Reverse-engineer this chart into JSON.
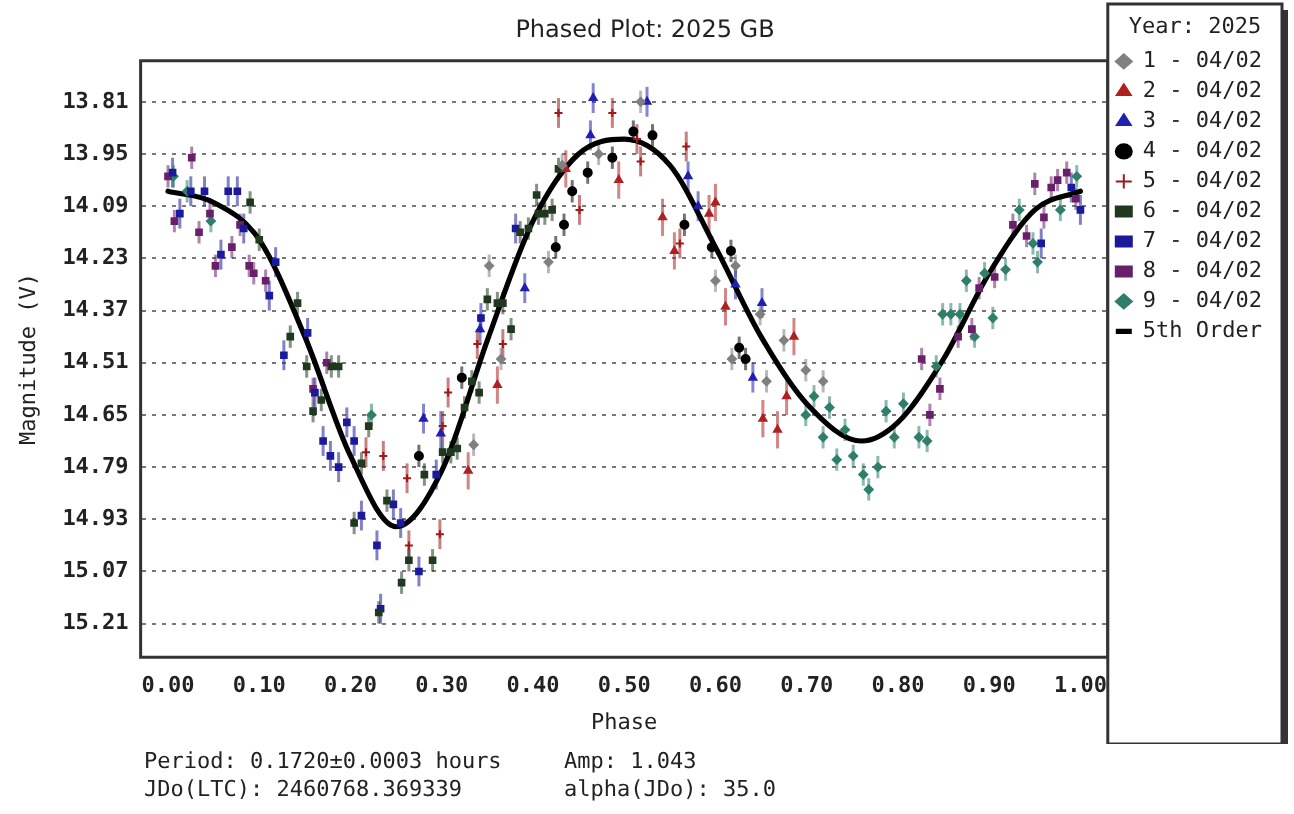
{
  "chart_data": {
    "type": "scatter",
    "title": "Phased Plot: 2025 GB",
    "xlabel": "Phase",
    "ylabel": "Magnitude (V)",
    "legend_title": "Year: 2025",
    "legend": "right",
    "grid": "y",
    "xlim": [
      -0.03,
      1.03
    ],
    "ylim": [
      15.3,
      13.7
    ],
    "xticks": [
      {
        "value": 0,
        "label": "0.00"
      },
      {
        "value": 0.1,
        "label": "0.10"
      },
      {
        "value": 0.2,
        "label": "0.20"
      },
      {
        "value": 0.3,
        "label": "0.30"
      },
      {
        "value": 0.4,
        "label": "0.40"
      },
      {
        "value": 0.5,
        "label": "0.50"
      },
      {
        "value": 0.6,
        "label": "0.60"
      },
      {
        "value": 0.7,
        "label": "0.70"
      },
      {
        "value": 0.8,
        "label": "0.80"
      },
      {
        "value": 0.9,
        "label": "0.90"
      },
      {
        "value": 1,
        "label": "1.00"
      }
    ],
    "yticks": [
      13.81,
      13.95,
      14.09,
      14.23,
      14.37,
      14.51,
      14.65,
      14.79,
      14.93,
      15.07,
      15.21
    ],
    "annotations": [
      "Period: 0.1720±0.0003 hours",
      "Amp: 1.043",
      "JDo(LTC): 2460768.369339",
      "alpha(JDo): 35.0"
    ],
    "series": [
      {
        "name": "1 - 04/02",
        "color": "#808080",
        "marker": "diamond",
        "x": [
          0.335,
          0.352,
          0.365,
          0.417,
          0.432,
          0.472,
          0.518,
          0.6,
          0.618,
          0.622,
          0.649,
          0.656,
          0.675,
          0.699,
          0.718
        ],
        "values": [
          14.73,
          14.25,
          14.5,
          14.24,
          13.98,
          13.95,
          13.81,
          14.29,
          14.5,
          14.25,
          14.38,
          14.56,
          14.45,
          14.53,
          14.56
        ],
        "errors": [
          0.03,
          0.03,
          0.03,
          0.03,
          0.03,
          0.03,
          0.03,
          0.03,
          0.03,
          0.03,
          0.03,
          0.03,
          0.03,
          0.03,
          0.03
        ]
      },
      {
        "name": "2 - 04/02",
        "color": "#b02020",
        "marker": "triangle",
        "x": [
          0.329,
          0.361,
          0.436,
          0.494,
          0.542,
          0.555,
          0.593,
          0.6,
          0.611,
          0.652,
          0.668,
          0.678,
          0.686
        ],
        "values": [
          14.8,
          14.57,
          13.99,
          14.02,
          14.12,
          14.21,
          14.11,
          14.08,
          14.36,
          14.66,
          14.69,
          14.6,
          14.44
        ],
        "errors": [
          0.05,
          0.05,
          0.05,
          0.05,
          0.05,
          0.05,
          0.05,
          0.05,
          0.05,
          0.05,
          0.05,
          0.05,
          0.05
        ]
      },
      {
        "name": "3 - 04/02",
        "color": "#2020b0",
        "marker": "triangle",
        "x": [
          0.28,
          0.299,
          0.342,
          0.391,
          0.463,
          0.466,
          0.525,
          0.57,
          0.581,
          0.622,
          0.641,
          0.651
        ],
        "values": [
          14.66,
          14.7,
          14.42,
          14.31,
          13.9,
          13.8,
          13.81,
          14.01,
          14.09,
          14.3,
          14.55,
          14.35
        ],
        "errors": [
          0.04,
          0.06,
          0.04,
          0.04,
          0.04,
          0.04,
          0.04,
          0.04,
          0.04,
          0.04,
          0.04,
          0.04
        ]
      },
      {
        "name": "4 - 04/02",
        "color": "#000000",
        "marker": "circle",
        "x": [
          0.275,
          0.322,
          0.425,
          0.434,
          0.443,
          0.46,
          0.487,
          0.51,
          0.531,
          0.566,
          0.596,
          0.617,
          0.626,
          0.633
        ],
        "values": [
          14.76,
          14.55,
          14.2,
          14.14,
          14.05,
          14.0,
          13.96,
          13.89,
          13.9,
          14.14,
          14.2,
          14.21,
          14.47,
          14.5
        ],
        "errors": [
          0.03,
          0.03,
          0.03,
          0.03,
          0.03,
          0.03,
          0.03,
          0.03,
          0.03,
          0.03,
          0.03,
          0.03,
          0.03,
          0.03
        ]
      },
      {
        "name": "5 - 04/02",
        "color": "#a01818",
        "marker": "cross",
        "x": [
          0.217,
          0.236,
          0.262,
          0.264,
          0.298,
          0.301,
          0.307,
          0.339,
          0.367,
          0.428,
          0.451,
          0.487,
          0.514,
          0.518,
          0.561,
          0.568
        ],
        "values": [
          14.75,
          14.76,
          14.82,
          15.0,
          14.97,
          14.68,
          14.59,
          14.46,
          14.46,
          13.84,
          14.1,
          13.84,
          13.91,
          13.97,
          14.19,
          13.93
        ],
        "errors": [
          0.04,
          0.04,
          0.04,
          0.04,
          0.04,
          0.04,
          0.04,
          0.04,
          0.04,
          0.04,
          0.04,
          0.04,
          0.04,
          0.04,
          0.04,
          0.04
        ]
      },
      {
        "name": "6 - 04/02",
        "color": "#203820",
        "marker": "square",
        "x": [
          0.09,
          0.1,
          0.134,
          0.142,
          0.152,
          0.159,
          0.168,
          0.179,
          0.187,
          0.204,
          0.212,
          0.22,
          0.231,
          0.24,
          0.256,
          0.264,
          0.281,
          0.29,
          0.301,
          0.31,
          0.317,
          0.325,
          0.333,
          0.341,
          0.35,
          0.361,
          0.367,
          0.376,
          0.386,
          0.395,
          0.404,
          0.406,
          0.413,
          0.421,
          0.428
        ],
        "values": [
          14.08,
          14.18,
          14.44,
          14.35,
          14.52,
          14.64,
          14.61,
          14.52,
          14.52,
          14.94,
          14.78,
          14.68,
          15.18,
          14.88,
          15.1,
          15.04,
          14.81,
          15.04,
          14.75,
          14.75,
          14.74,
          14.63,
          14.56,
          14.59,
          14.34,
          14.35,
          14.35,
          14.42,
          14.16,
          14.15,
          14.06,
          14.11,
          14.11,
          14.1,
          13.99
        ],
        "errors": [
          0.03,
          0.03,
          0.03,
          0.03,
          0.03,
          0.03,
          0.03,
          0.03,
          0.03,
          0.03,
          0.03,
          0.03,
          0.03,
          0.03,
          0.03,
          0.03,
          0.03,
          0.03,
          0.03,
          0.03,
          0.03,
          0.03,
          0.03,
          0.03,
          0.03,
          0.03,
          0.03,
          0.03,
          0.03,
          0.03,
          0.03,
          0.03,
          0.03,
          0.03,
          0.03
        ]
      },
      {
        "name": "7 - 04/02",
        "color": "#1a1a9a",
        "marker": "square",
        "x": [
          0.005,
          0.013,
          0.025,
          0.04,
          0.058,
          0.066,
          0.076,
          0.083,
          0.111,
          0.118,
          0.127,
          0.153,
          0.161,
          0.17,
          0.178,
          0.187,
          0.196,
          0.204,
          0.212,
          0.229,
          0.233,
          0.247,
          0.255,
          0.275,
          0.294,
          0.343,
          0.381,
          0.957,
          0.99,
          1.0
        ],
        "values": [
          14.0,
          14.11,
          14.05,
          14.05,
          14.22,
          14.05,
          14.05,
          14.15,
          14.33,
          14.24,
          14.49,
          14.43,
          14.59,
          14.72,
          14.76,
          14.79,
          14.67,
          14.72,
          14.92,
          15.0,
          15.17,
          14.89,
          14.94,
          15.07,
          14.81,
          14.39,
          14.15,
          14.19,
          14.04,
          14.1
        ],
        "errors": [
          0.04,
          0.04,
          0.04,
          0.04,
          0.04,
          0.04,
          0.04,
          0.04,
          0.04,
          0.04,
          0.04,
          0.04,
          0.04,
          0.04,
          0.04,
          0.04,
          0.04,
          0.04,
          0.04,
          0.04,
          0.04,
          0.04,
          0.04,
          0.04,
          0.04,
          0.04,
          0.04,
          0.04,
          0.04,
          0.04
        ]
      },
      {
        "name": "8 - 04/02",
        "color": "#6a1f6a",
        "marker": "square",
        "x": [
          0.0,
          0.007,
          0.026,
          0.034,
          0.046,
          0.052,
          0.07,
          0.079,
          0.089,
          0.094,
          0.107,
          0.159,
          0.174,
          0.826,
          0.835,
          0.846,
          0.866,
          0.881,
          0.889,
          0.906,
          0.926,
          0.941,
          0.95,
          0.96,
          0.968,
          0.975,
          0.985,
          0.995
        ],
        "values": [
          14.01,
          14.13,
          13.96,
          14.16,
          14.11,
          14.25,
          14.2,
          14.14,
          14.25,
          14.27,
          14.29,
          14.58,
          14.51,
          14.5,
          14.65,
          14.58,
          14.44,
          14.42,
          14.31,
          14.28,
          14.14,
          14.17,
          14.03,
          14.12,
          14.04,
          14.02,
          14.0,
          14.07
        ],
        "errors": [
          0.03,
          0.03,
          0.03,
          0.03,
          0.03,
          0.03,
          0.03,
          0.03,
          0.03,
          0.03,
          0.03,
          0.03,
          0.03,
          0.03,
          0.03,
          0.03,
          0.03,
          0.03,
          0.03,
          0.03,
          0.03,
          0.03,
          0.03,
          0.03,
          0.03,
          0.03,
          0.03,
          0.03
        ]
      },
      {
        "name": "9 - 04/02",
        "color": "#2f7f6a",
        "marker": "diamond",
        "x": [
          0.006,
          0.021,
          0.047,
          0.223,
          0.699,
          0.708,
          0.718,
          0.725,
          0.733,
          0.742,
          0.751,
          0.762,
          0.768,
          0.778,
          0.787,
          0.796,
          0.806,
          0.823,
          0.832,
          0.842,
          0.849,
          0.858,
          0.868,
          0.875,
          0.884,
          0.895,
          0.904,
          0.918,
          0.933,
          0.948,
          0.953,
          0.978,
          0.996
        ],
        "values": [
          14.01,
          14.05,
          14.13,
          14.65,
          14.65,
          14.6,
          14.71,
          14.63,
          14.77,
          14.69,
          14.76,
          14.81,
          14.85,
          14.79,
          14.64,
          14.71,
          14.62,
          14.71,
          14.72,
          14.52,
          14.38,
          14.38,
          14.38,
          14.29,
          14.44,
          14.27,
          14.39,
          14.26,
          14.1,
          14.19,
          14.24,
          14.1,
          14.01
        ],
        "errors": [
          0.03,
          0.03,
          0.03,
          0.03,
          0.03,
          0.03,
          0.03,
          0.03,
          0.03,
          0.03,
          0.03,
          0.03,
          0.03,
          0.03,
          0.03,
          0.03,
          0.03,
          0.03,
          0.03,
          0.03,
          0.03,
          0.03,
          0.03,
          0.03,
          0.03,
          0.03,
          0.03,
          0.03,
          0.03,
          0.03,
          0.03,
          0.03,
          0.03
        ]
      },
      {
        "name": "5th Order",
        "type": "line",
        "color": "#000000",
        "marker": "none",
        "line_style": "solid",
        "x": [
          0,
          0.05,
          0.1,
          0.15,
          0.2,
          0.25,
          0.3,
          0.35,
          0.4,
          0.45,
          0.5,
          0.55,
          0.6,
          0.65,
          0.7,
          0.76,
          0.8,
          0.85,
          0.9,
          0.95,
          1.0
        ],
        "values": [
          14.05,
          14.08,
          14.18,
          14.44,
          14.76,
          14.95,
          14.8,
          14.45,
          14.13,
          13.95,
          13.91,
          13.98,
          14.2,
          14.44,
          14.62,
          14.72,
          14.67,
          14.5,
          14.27,
          14.1,
          14.05
        ]
      }
    ]
  }
}
